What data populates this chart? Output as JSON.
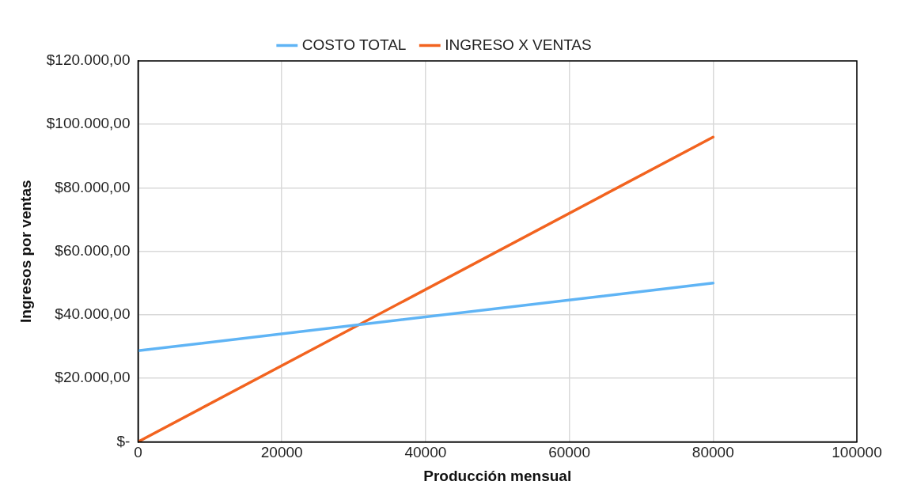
{
  "chart_data": {
    "type": "line",
    "xlabel": "Producción mensual",
    "ylabel": "Ingresos por ventas",
    "x": [
      0,
      80000
    ],
    "series": [
      {
        "name": "COSTO TOTAL",
        "color": "#5fb4f5",
        "values": [
          28700,
          50000
        ]
      },
      {
        "name": "INGRESO X VENTAS",
        "color": "#f2631f",
        "values": [
          0,
          96000
        ]
      }
    ],
    "xlim": [
      0,
      100000
    ],
    "xticks": [
      0,
      20000,
      40000,
      60000,
      80000,
      100000
    ],
    "ylim": [
      0,
      120000
    ],
    "yticks": [
      {
        "value": 0,
        "label": "$-"
      },
      {
        "value": 20000,
        "label": "$20.000,00"
      },
      {
        "value": 40000,
        "label": "$40.000,00"
      },
      {
        "value": 60000,
        "label": "$60.000,00"
      },
      {
        "value": 80000,
        "label": "$80.000,00"
      },
      {
        "value": 100000,
        "label": "$100.000,00"
      },
      {
        "value": 120000,
        "label": "$120.000,00"
      }
    ],
    "grid": true,
    "legend": "top",
    "marker": "none",
    "line_style": "solid"
  }
}
